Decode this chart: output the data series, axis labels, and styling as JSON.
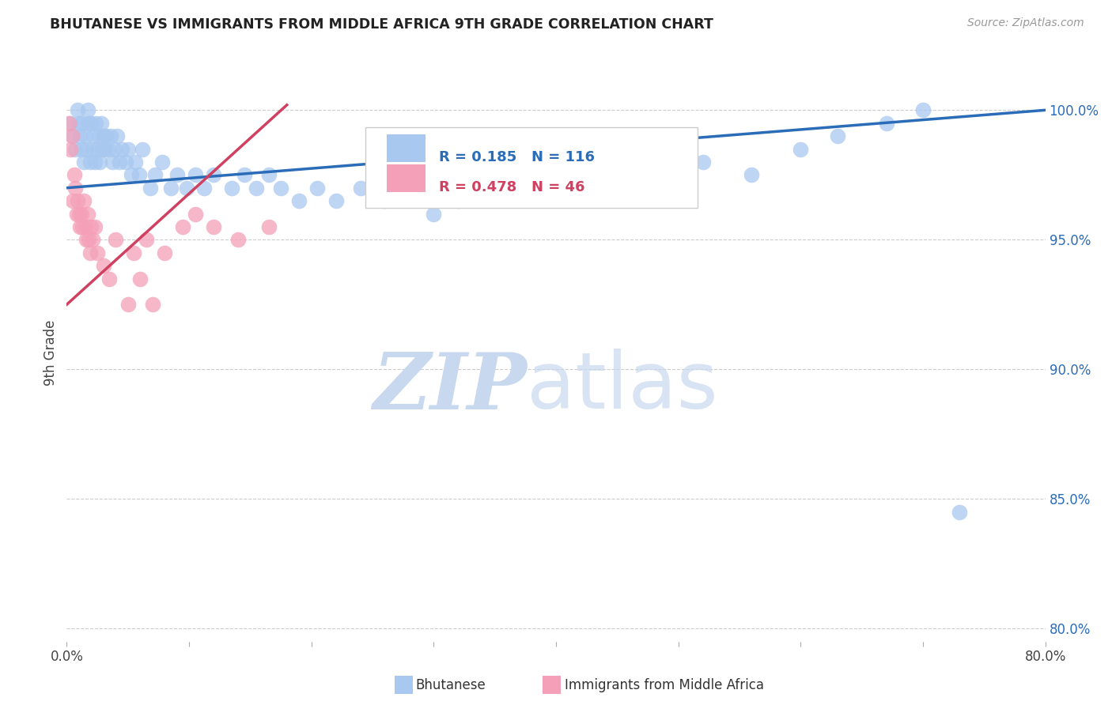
{
  "title": "BHUTANESE VS IMMIGRANTS FROM MIDDLE AFRICA 9TH GRADE CORRELATION CHART",
  "source": "Source: ZipAtlas.com",
  "ylabel": "9th Grade",
  "xlim": [
    0.0,
    80.0
  ],
  "ylim": [
    79.5,
    101.8
  ],
  "x_tick_positions": [
    0,
    10,
    20,
    30,
    40,
    50,
    60,
    70,
    80
  ],
  "x_tick_labels": [
    "0.0%",
    "",
    "",
    "",
    "",
    "",
    "",
    "",
    "80.0%"
  ],
  "y_tick_positions": [
    80.0,
    85.0,
    90.0,
    95.0,
    100.0
  ],
  "y_tick_labels": [
    "80.0%",
    "85.0%",
    "90.0%",
    "95.0%",
    "100.0%"
  ],
  "legend_r1": "0.185",
  "legend_n1": "116",
  "legend_r2": "0.478",
  "legend_n2": "46",
  "blue_color": "#A8C8F0",
  "blue_line_color": "#2B6CB8",
  "pink_color": "#F4A0B8",
  "pink_line_color": "#D04060",
  "watermark_zip": "ZIP",
  "watermark_atlas": "atlas",
  "watermark_color": "#C8D8EE",
  "blue_trendline_x": [
    0.0,
    80.0
  ],
  "blue_trendline_y": [
    97.0,
    100.0
  ],
  "pink_trendline_x": [
    0.0,
    18.0
  ],
  "pink_trendline_y": [
    92.5,
    100.2
  ],
  "blue_x": [
    0.3,
    0.5,
    0.7,
    0.9,
    1.0,
    1.1,
    1.2,
    1.3,
    1.4,
    1.5,
    1.6,
    1.7,
    1.8,
    1.9,
    2.0,
    2.1,
    2.2,
    2.3,
    2.4,
    2.5,
    2.6,
    2.7,
    2.8,
    2.9,
    3.0,
    3.1,
    3.2,
    3.4,
    3.6,
    3.7,
    3.9,
    4.1,
    4.3,
    4.5,
    4.8,
    5.0,
    5.3,
    5.6,
    5.9,
    6.2,
    6.8,
    7.2,
    7.8,
    8.5,
    9.0,
    9.8,
    10.5,
    11.2,
    12.0,
    13.5,
    14.5,
    15.5,
    16.5,
    17.5,
    19.0,
    20.5,
    22.0,
    24.0,
    26.0,
    28.0,
    30.0,
    32.0,
    34.0,
    36.0,
    38.0,
    40.0,
    43.0,
    46.0,
    49.0,
    52.0,
    56.0,
    60.0,
    63.0,
    67.0,
    70.0,
    73.0
  ],
  "blue_y": [
    99.5,
    99.0,
    98.5,
    100.0,
    99.5,
    99.0,
    98.5,
    99.5,
    98.0,
    99.0,
    98.5,
    100.0,
    99.5,
    98.0,
    99.5,
    98.5,
    99.0,
    98.0,
    99.5,
    98.5,
    99.0,
    98.0,
    99.5,
    98.5,
    99.0,
    98.5,
    99.0,
    98.5,
    99.0,
    98.0,
    98.5,
    99.0,
    98.0,
    98.5,
    98.0,
    98.5,
    97.5,
    98.0,
    97.5,
    98.5,
    97.0,
    97.5,
    98.0,
    97.0,
    97.5,
    97.0,
    97.5,
    97.0,
    97.5,
    97.0,
    97.5,
    97.0,
    97.5,
    97.0,
    96.5,
    97.0,
    96.5,
    97.0,
    96.5,
    97.5,
    96.0,
    96.5,
    97.0,
    97.5,
    97.0,
    97.5,
    97.0,
    98.0,
    97.5,
    98.0,
    97.5,
    98.5,
    99.0,
    99.5,
    100.0,
    84.5
  ],
  "pink_x": [
    0.2,
    0.3,
    0.4,
    0.5,
    0.6,
    0.7,
    0.8,
    0.9,
    1.0,
    1.1,
    1.2,
    1.3,
    1.4,
    1.5,
    1.6,
    1.7,
    1.8,
    1.9,
    2.0,
    2.1,
    2.3,
    2.5,
    3.0,
    3.5,
    4.0,
    5.0,
    5.5,
    6.0,
    6.5,
    7.0,
    8.0,
    9.5,
    10.5,
    12.0,
    14.0,
    16.5
  ],
  "pink_y": [
    99.5,
    98.5,
    99.0,
    96.5,
    97.5,
    97.0,
    96.0,
    96.5,
    96.0,
    95.5,
    96.0,
    95.5,
    96.5,
    95.5,
    95.0,
    96.0,
    95.0,
    94.5,
    95.5,
    95.0,
    95.5,
    94.5,
    94.0,
    93.5,
    95.0,
    92.5,
    94.5,
    93.5,
    95.0,
    92.5,
    94.5,
    95.5,
    96.0,
    95.5,
    95.0,
    95.5
  ]
}
